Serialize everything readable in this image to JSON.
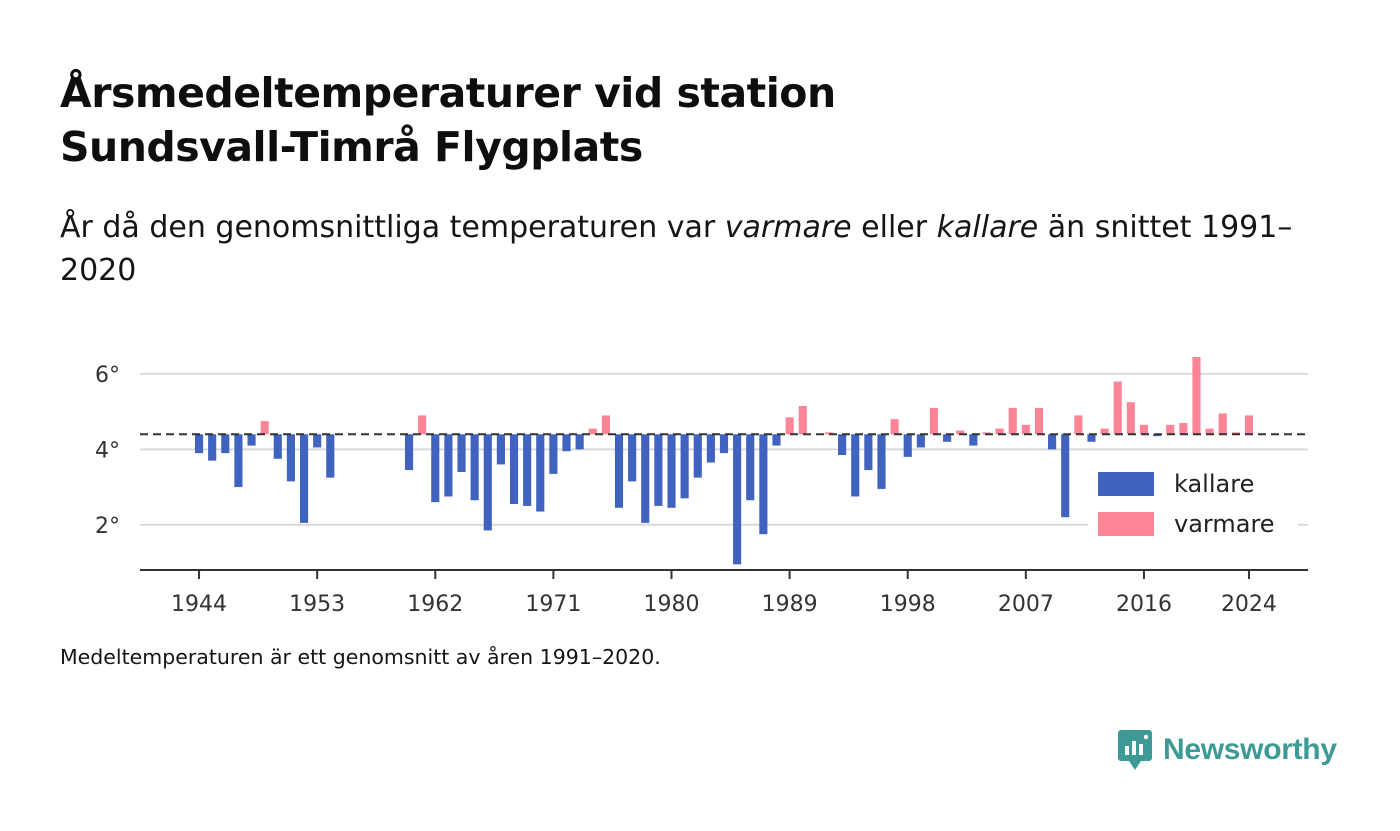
{
  "title_line1": "Årsmedeltemperaturer vid station",
  "title_line2": "Sundsvall-Timrå Flygplats",
  "subtitle": {
    "pre": "År då den genomsnittliga temperaturen var ",
    "warm_word": "varmare",
    "mid": " eller ",
    "cold_word": "kallare",
    "post": " än snittet 1991–2020"
  },
  "footnote": "Medeltemperaturen är ett genomsnitt av åren 1991–2020.",
  "brand": "Newsworthy",
  "colors": {
    "cold": "#4063bf",
    "warm": "#fb8596",
    "grid": "#d9d9d9",
    "axis": "#333333",
    "baseline": "#333333",
    "brand": "#3d9a94"
  },
  "chart_data": {
    "type": "bar",
    "title": "Årsmedeltemperaturer vid station Sundsvall-Timrå Flygplats",
    "subtitle": "År då den genomsnittliga temperaturen var varmare eller kallare än snittet 1991–2020",
    "baseline": 4.4,
    "ylim": [
      0.8,
      6.9
    ],
    "xlim": [
      1939.5,
      2028.5
    ],
    "yticks": [
      {
        "value": 2,
        "label": "2°"
      },
      {
        "value": 4,
        "label": "4°"
      },
      {
        "value": 6,
        "label": "6°"
      }
    ],
    "xticks": [
      {
        "value": 1944,
        "label": "1944"
      },
      {
        "value": 1953,
        "label": "1953"
      },
      {
        "value": 1962,
        "label": "1962"
      },
      {
        "value": 1971,
        "label": "1971"
      },
      {
        "value": 1980,
        "label": "1980"
      },
      {
        "value": 1989,
        "label": "1989"
      },
      {
        "value": 1998,
        "label": "1998"
      },
      {
        "value": 2007,
        "label": "2007"
      },
      {
        "value": 2016,
        "label": "2016"
      },
      {
        "value": 2024,
        "label": "2024"
      }
    ],
    "grid": true,
    "legend": {
      "position": "bottom-right",
      "entries": [
        {
          "key": "cold",
          "label": "kallare"
        },
        {
          "key": "warm",
          "label": "varmare"
        }
      ]
    },
    "series": [
      {
        "x": 1944,
        "y": 3.9
      },
      {
        "x": 1945,
        "y": 3.7
      },
      {
        "x": 1946,
        "y": 3.9
      },
      {
        "x": 1947,
        "y": 3.0
      },
      {
        "x": 1948,
        "y": 4.1
      },
      {
        "x": 1949,
        "y": 4.75
      },
      {
        "x": 1950,
        "y": 3.75
      },
      {
        "x": 1951,
        "y": 3.15
      },
      {
        "x": 1952,
        "y": 2.05
      },
      {
        "x": 1953,
        "y": 4.05
      },
      {
        "x": 1954,
        "y": 3.25
      },
      {
        "x": 1960,
        "y": 3.45
      },
      {
        "x": 1961,
        "y": 4.9
      },
      {
        "x": 1962,
        "y": 2.6
      },
      {
        "x": 1963,
        "y": 2.75
      },
      {
        "x": 1964,
        "y": 3.4
      },
      {
        "x": 1965,
        "y": 2.65
      },
      {
        "x": 1966,
        "y": 1.85
      },
      {
        "x": 1967,
        "y": 3.6
      },
      {
        "x": 1968,
        "y": 2.55
      },
      {
        "x": 1969,
        "y": 2.5
      },
      {
        "x": 1970,
        "y": 2.35
      },
      {
        "x": 1971,
        "y": 3.35
      },
      {
        "x": 1972,
        "y": 3.95
      },
      {
        "x": 1973,
        "y": 4.0
      },
      {
        "x": 1974,
        "y": 4.55
      },
      {
        "x": 1975,
        "y": 4.9
      },
      {
        "x": 1976,
        "y": 2.45
      },
      {
        "x": 1977,
        "y": 3.15
      },
      {
        "x": 1978,
        "y": 2.05
      },
      {
        "x": 1979,
        "y": 2.5
      },
      {
        "x": 1980,
        "y": 2.45
      },
      {
        "x": 1981,
        "y": 2.7
      },
      {
        "x": 1982,
        "y": 3.25
      },
      {
        "x": 1983,
        "y": 3.65
      },
      {
        "x": 1984,
        "y": 3.9
      },
      {
        "x": 1985,
        "y": 0.95
      },
      {
        "x": 1986,
        "y": 2.65
      },
      {
        "x": 1987,
        "y": 1.75
      },
      {
        "x": 1988,
        "y": 4.1
      },
      {
        "x": 1989,
        "y": 4.85
      },
      {
        "x": 1990,
        "y": 5.15
      },
      {
        "x": 1992,
        "y": 4.45
      },
      {
        "x": 1993,
        "y": 3.85
      },
      {
        "x": 1994,
        "y": 2.75
      },
      {
        "x": 1995,
        "y": 3.45
      },
      {
        "x": 1996,
        "y": 2.95
      },
      {
        "x": 1997,
        "y": 4.8
      },
      {
        "x": 1998,
        "y": 3.8
      },
      {
        "x": 1999,
        "y": 4.05
      },
      {
        "x": 2000,
        "y": 5.1
      },
      {
        "x": 2001,
        "y": 4.2
      },
      {
        "x": 2002,
        "y": 4.5
      },
      {
        "x": 2003,
        "y": 4.1
      },
      {
        "x": 2004,
        "y": 4.45
      },
      {
        "x": 2005,
        "y": 4.55
      },
      {
        "x": 2006,
        "y": 5.1
      },
      {
        "x": 2007,
        "y": 4.65
      },
      {
        "x": 2008,
        "y": 5.1
      },
      {
        "x": 2009,
        "y": 4.0
      },
      {
        "x": 2010,
        "y": 2.2
      },
      {
        "x": 2011,
        "y": 4.9
      },
      {
        "x": 2012,
        "y": 4.2
      },
      {
        "x": 2013,
        "y": 4.55
      },
      {
        "x": 2014,
        "y": 5.8
      },
      {
        "x": 2015,
        "y": 5.25
      },
      {
        "x": 2016,
        "y": 4.65
      },
      {
        "x": 2017,
        "y": 4.35
      },
      {
        "x": 2018,
        "y": 4.65
      },
      {
        "x": 2019,
        "y": 4.7
      },
      {
        "x": 2020,
        "y": 6.45
      },
      {
        "x": 2021,
        "y": 4.55
      },
      {
        "x": 2022,
        "y": 4.95
      },
      {
        "x": 2023,
        "y": 4.45
      },
      {
        "x": 2024,
        "y": 4.9
      }
    ]
  }
}
